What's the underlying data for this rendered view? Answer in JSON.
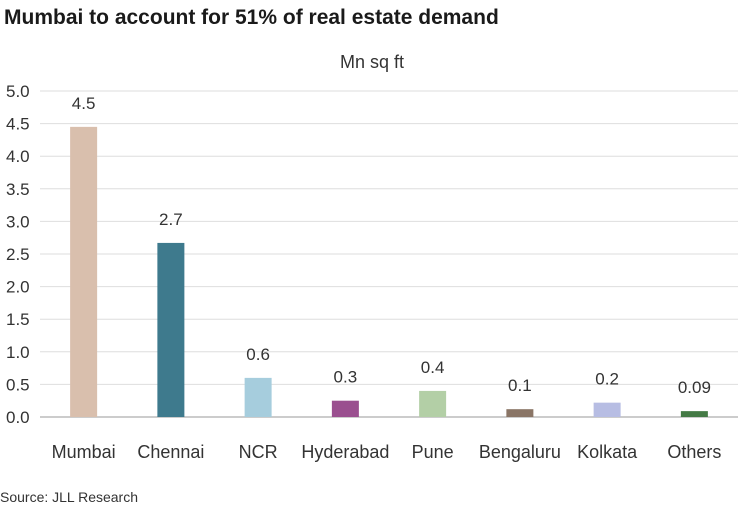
{
  "chart_data": {
    "type": "bar",
    "title": "Mumbai to account for 51% of real estate demand",
    "unit_label": "Mn sq ft",
    "source": "Source: JLL Research",
    "categories": [
      "Mumbai",
      "Chennai",
      "NCR",
      "Hyderabad",
      "Pune",
      "Bengaluru",
      "Kolkata",
      "Others"
    ],
    "values": [
      4.45,
      2.67,
      0.6,
      0.25,
      0.4,
      0.12,
      0.22,
      0.09
    ],
    "value_labels": [
      "4.5",
      "2.7",
      "0.6",
      "0.3",
      "0.4",
      "0.1",
      "0.2",
      "0.09"
    ],
    "colors": [
      "#d9bfad",
      "#3e7a8d",
      "#a6cddd",
      "#9a4f8f",
      "#b3cfa6",
      "#8a7566",
      "#b7bde3",
      "#447a45"
    ],
    "ylim": [
      0,
      5
    ],
    "yticks": [
      "0.0",
      "0.5",
      "1.0",
      "1.5",
      "2.0",
      "2.5",
      "3.0",
      "3.5",
      "4.0",
      "4.5",
      "5.0"
    ],
    "grid": true,
    "xlabel": "",
    "ylabel": ""
  }
}
